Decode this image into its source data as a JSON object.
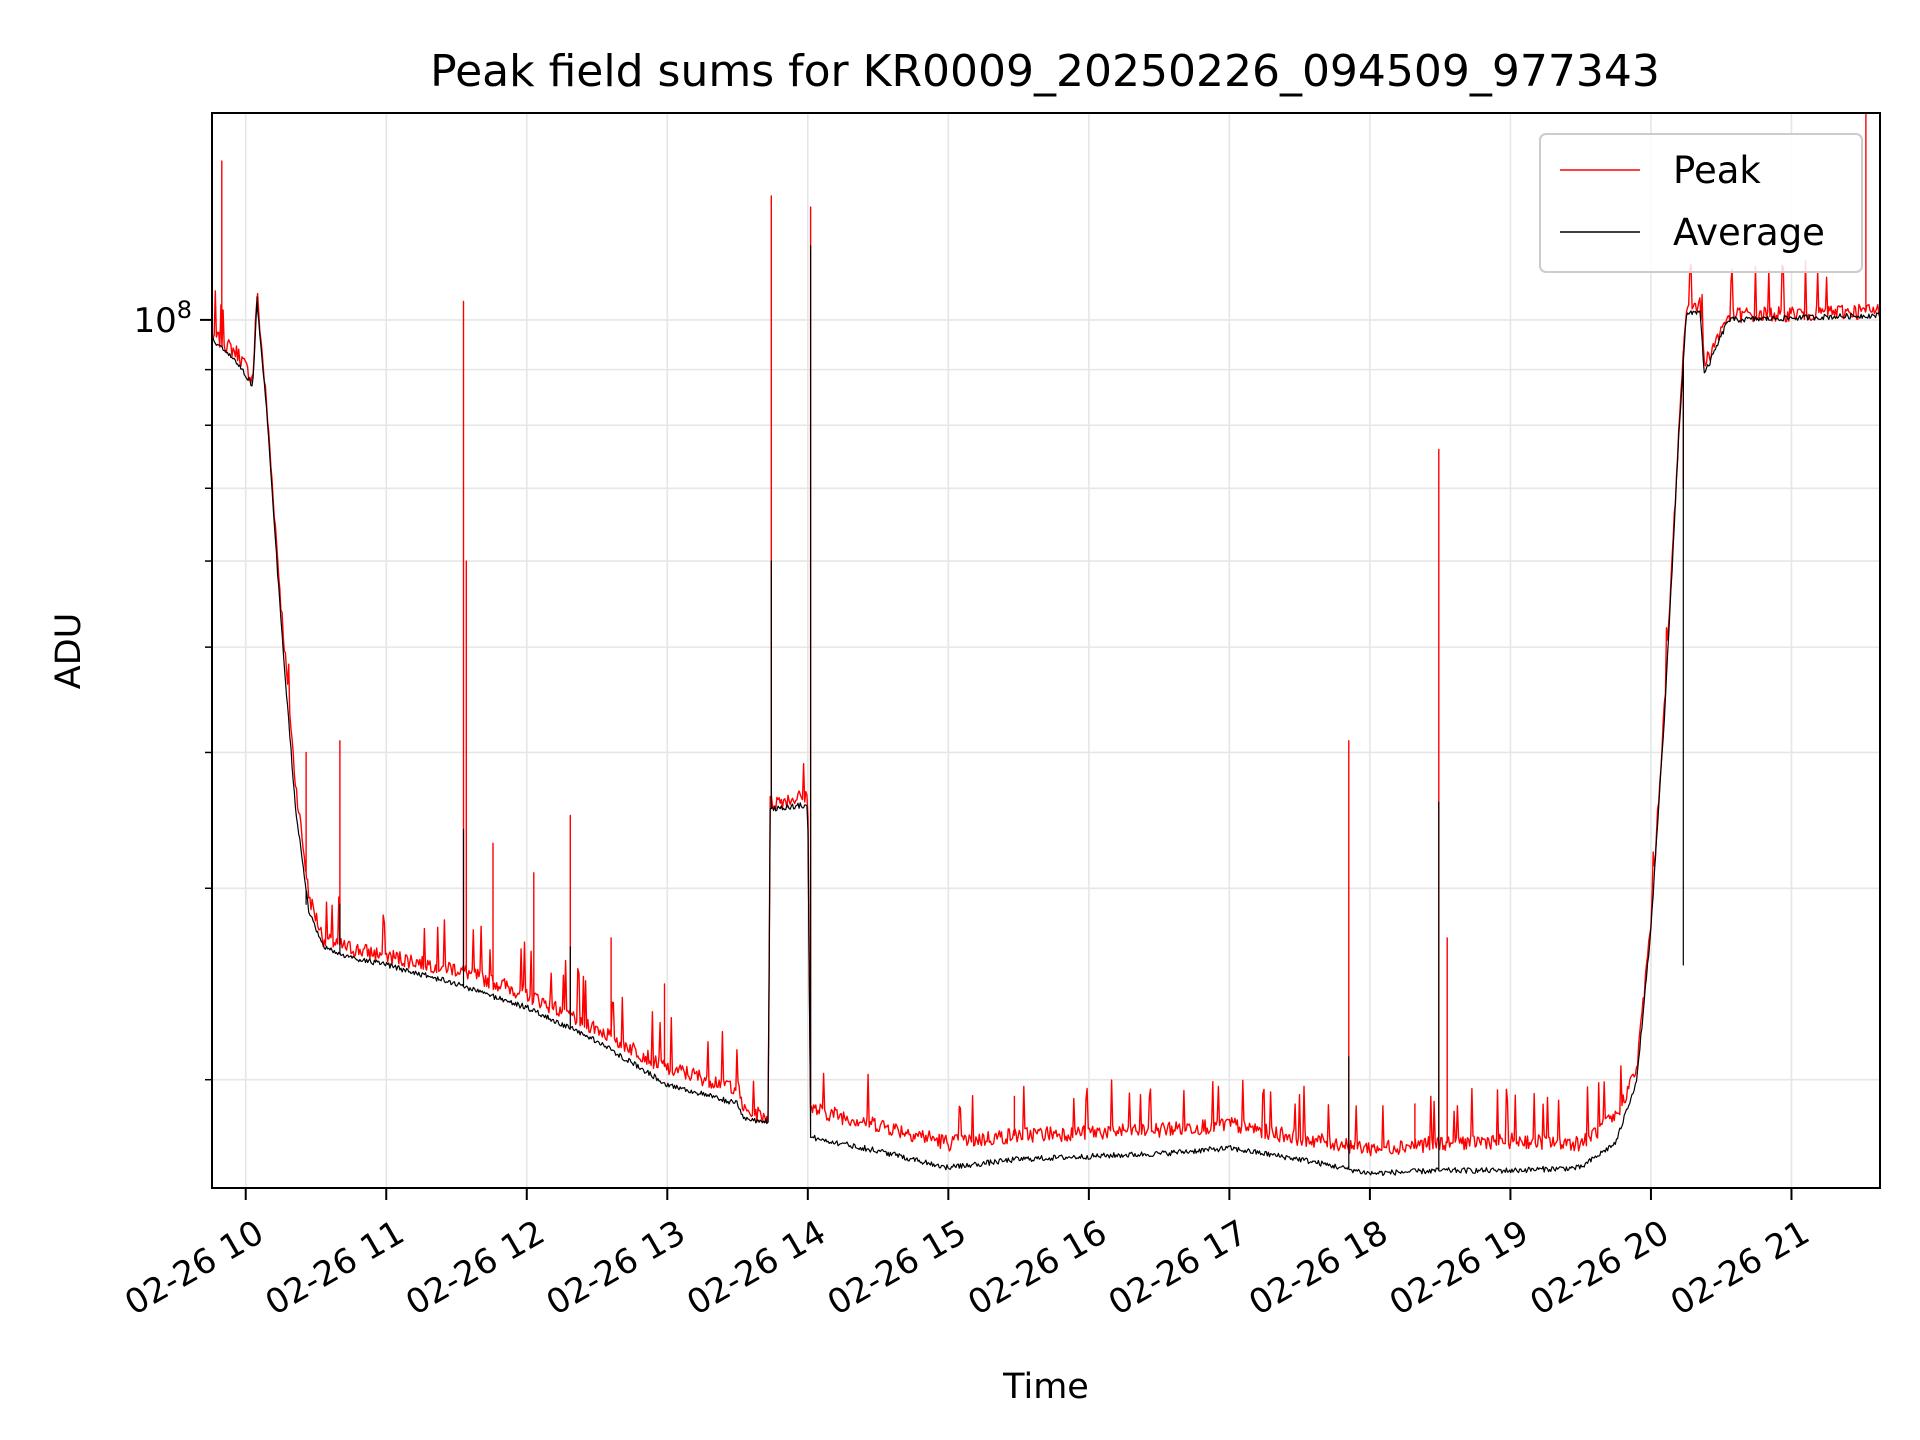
{
  "chart_data": {
    "type": "line",
    "title": "Peak field sums for KR0009_20250226_094509_977343",
    "xlabel": "Time",
    "ylabel": "ADU",
    "y_scale": "log",
    "y_tick_label": "10",
    "y_tick_exponent": "8",
    "ylim": [
      15900000,
      155000000
    ],
    "xlim_hours": [
      9.76,
      21.63
    ],
    "grid": true,
    "legend_position": "top-right",
    "x_tick_labels": [
      "02-26 10",
      "02-26 11",
      "02-26 12",
      "02-26 13",
      "02-26 14",
      "02-26 15",
      "02-26 16",
      "02-26 17",
      "02-26 18",
      "02-26 19",
      "02-26 20",
      "02-26 21"
    ],
    "x_tick_hours": [
      10,
      11,
      12,
      13,
      14,
      15,
      16,
      17,
      18,
      19,
      20,
      21
    ],
    "series": [
      {
        "name": "Peak",
        "color": "#ff0000",
        "baseline_points": [
          [
            9.76,
            97000000
          ],
          [
            9.95,
            93000000
          ],
          [
            10.05,
            88000000
          ],
          [
            10.08,
            106000000
          ],
          [
            10.15,
            83000000
          ],
          [
            10.25,
            55000000
          ],
          [
            10.35,
            38000000
          ],
          [
            10.45,
            29500000
          ],
          [
            10.55,
            27000000
          ],
          [
            10.7,
            26500000
          ],
          [
            11.0,
            26000000
          ],
          [
            11.5,
            25300000
          ],
          [
            12.0,
            24000000
          ],
          [
            12.5,
            22300000
          ],
          [
            13.0,
            20500000
          ],
          [
            13.5,
            19700000
          ],
          [
            13.55,
            18700000
          ],
          [
            13.72,
            18500000
          ],
          [
            13.73,
            36000000
          ],
          [
            14.0,
            36500000
          ],
          [
            14.02,
            18800000
          ],
          [
            14.5,
            18200000
          ],
          [
            15.0,
            17500000
          ],
          [
            15.5,
            17800000
          ],
          [
            16.0,
            17900000
          ],
          [
            16.5,
            18000000
          ],
          [
            17.0,
            18200000
          ],
          [
            17.5,
            17700000
          ],
          [
            18.0,
            17300000
          ],
          [
            18.5,
            17500000
          ],
          [
            19.0,
            17600000
          ],
          [
            19.5,
            17500000
          ],
          [
            19.75,
            18500000
          ],
          [
            19.9,
            20500000
          ],
          [
            20.0,
            28000000
          ],
          [
            20.1,
            45000000
          ],
          [
            20.2,
            80000000
          ],
          [
            20.25,
            103000000
          ],
          [
            20.35,
            104000000
          ],
          [
            20.38,
            91000000
          ],
          [
            20.55,
            101000000
          ],
          [
            21.63,
            102000000
          ]
        ],
        "spikes": [
          [
            9.83,
            140000000
          ],
          [
            10.43,
            40000000
          ],
          [
            10.67,
            41000000
          ],
          [
            11.55,
            104000000
          ],
          [
            11.57,
            60000000
          ],
          [
            11.76,
            33000000
          ],
          [
            12.05,
            31000000
          ],
          [
            12.31,
            35000000
          ],
          [
            12.6,
            27000000
          ],
          [
            12.98,
            24500000
          ],
          [
            13.74,
            130000000
          ],
          [
            14.02,
            127000000
          ],
          [
            15.47,
            19300000
          ],
          [
            17.85,
            41000000
          ],
          [
            18.32,
            19000000
          ],
          [
            18.49,
            76000000
          ],
          [
            18.55,
            27000000
          ],
          [
            20.23,
            70000000
          ],
          [
            21.53,
            155000000
          ]
        ]
      },
      {
        "name": "Average",
        "color": "#000000",
        "baseline_points": [
          [
            9.76,
            96000000
          ],
          [
            9.95,
            91000000
          ],
          [
            10.05,
            87000000
          ],
          [
            10.08,
            104000000
          ],
          [
            10.15,
            82000000
          ],
          [
            10.25,
            53000000
          ],
          [
            10.35,
            36000000
          ],
          [
            10.45,
            28500000
          ],
          [
            10.55,
            26500000
          ],
          [
            10.7,
            26000000
          ],
          [
            11.0,
            25500000
          ],
          [
            11.5,
            24500000
          ],
          [
            12.0,
            23300000
          ],
          [
            12.5,
            21700000
          ],
          [
            13.0,
            19800000
          ],
          [
            13.5,
            19000000
          ],
          [
            13.55,
            18400000
          ],
          [
            13.72,
            18300000
          ],
          [
            13.73,
            35500000
          ],
          [
            14.0,
            35800000
          ],
          [
            14.02,
            17700000
          ],
          [
            14.5,
            17200000
          ],
          [
            15.0,
            16600000
          ],
          [
            15.5,
            16900000
          ],
          [
            16.0,
            17000000
          ],
          [
            16.5,
            17100000
          ],
          [
            17.0,
            17300000
          ],
          [
            17.5,
            16900000
          ],
          [
            18.0,
            16400000
          ],
          [
            18.5,
            16500000
          ],
          [
            19.0,
            16500000
          ],
          [
            19.5,
            16600000
          ],
          [
            19.75,
            17500000
          ],
          [
            19.9,
            20000000
          ],
          [
            20.0,
            27500000
          ],
          [
            20.1,
            44000000
          ],
          [
            20.2,
            79000000
          ],
          [
            20.25,
            101000000
          ],
          [
            20.35,
            102000000
          ],
          [
            20.38,
            89000000
          ],
          [
            20.55,
            100000000
          ],
          [
            21.63,
            101000000
          ]
        ],
        "spikes": [
          [
            10.08,
            105000000
          ],
          [
            10.43,
            29000000
          ],
          [
            10.67,
            29000000
          ],
          [
            11.55,
            34000000
          ],
          [
            12.31,
            26500000
          ],
          [
            13.74,
            60000000
          ],
          [
            14.02,
            117000000
          ],
          [
            17.85,
            21000000
          ],
          [
            18.49,
            36000000
          ],
          [
            20.23,
            25500000
          ]
        ]
      }
    ]
  }
}
